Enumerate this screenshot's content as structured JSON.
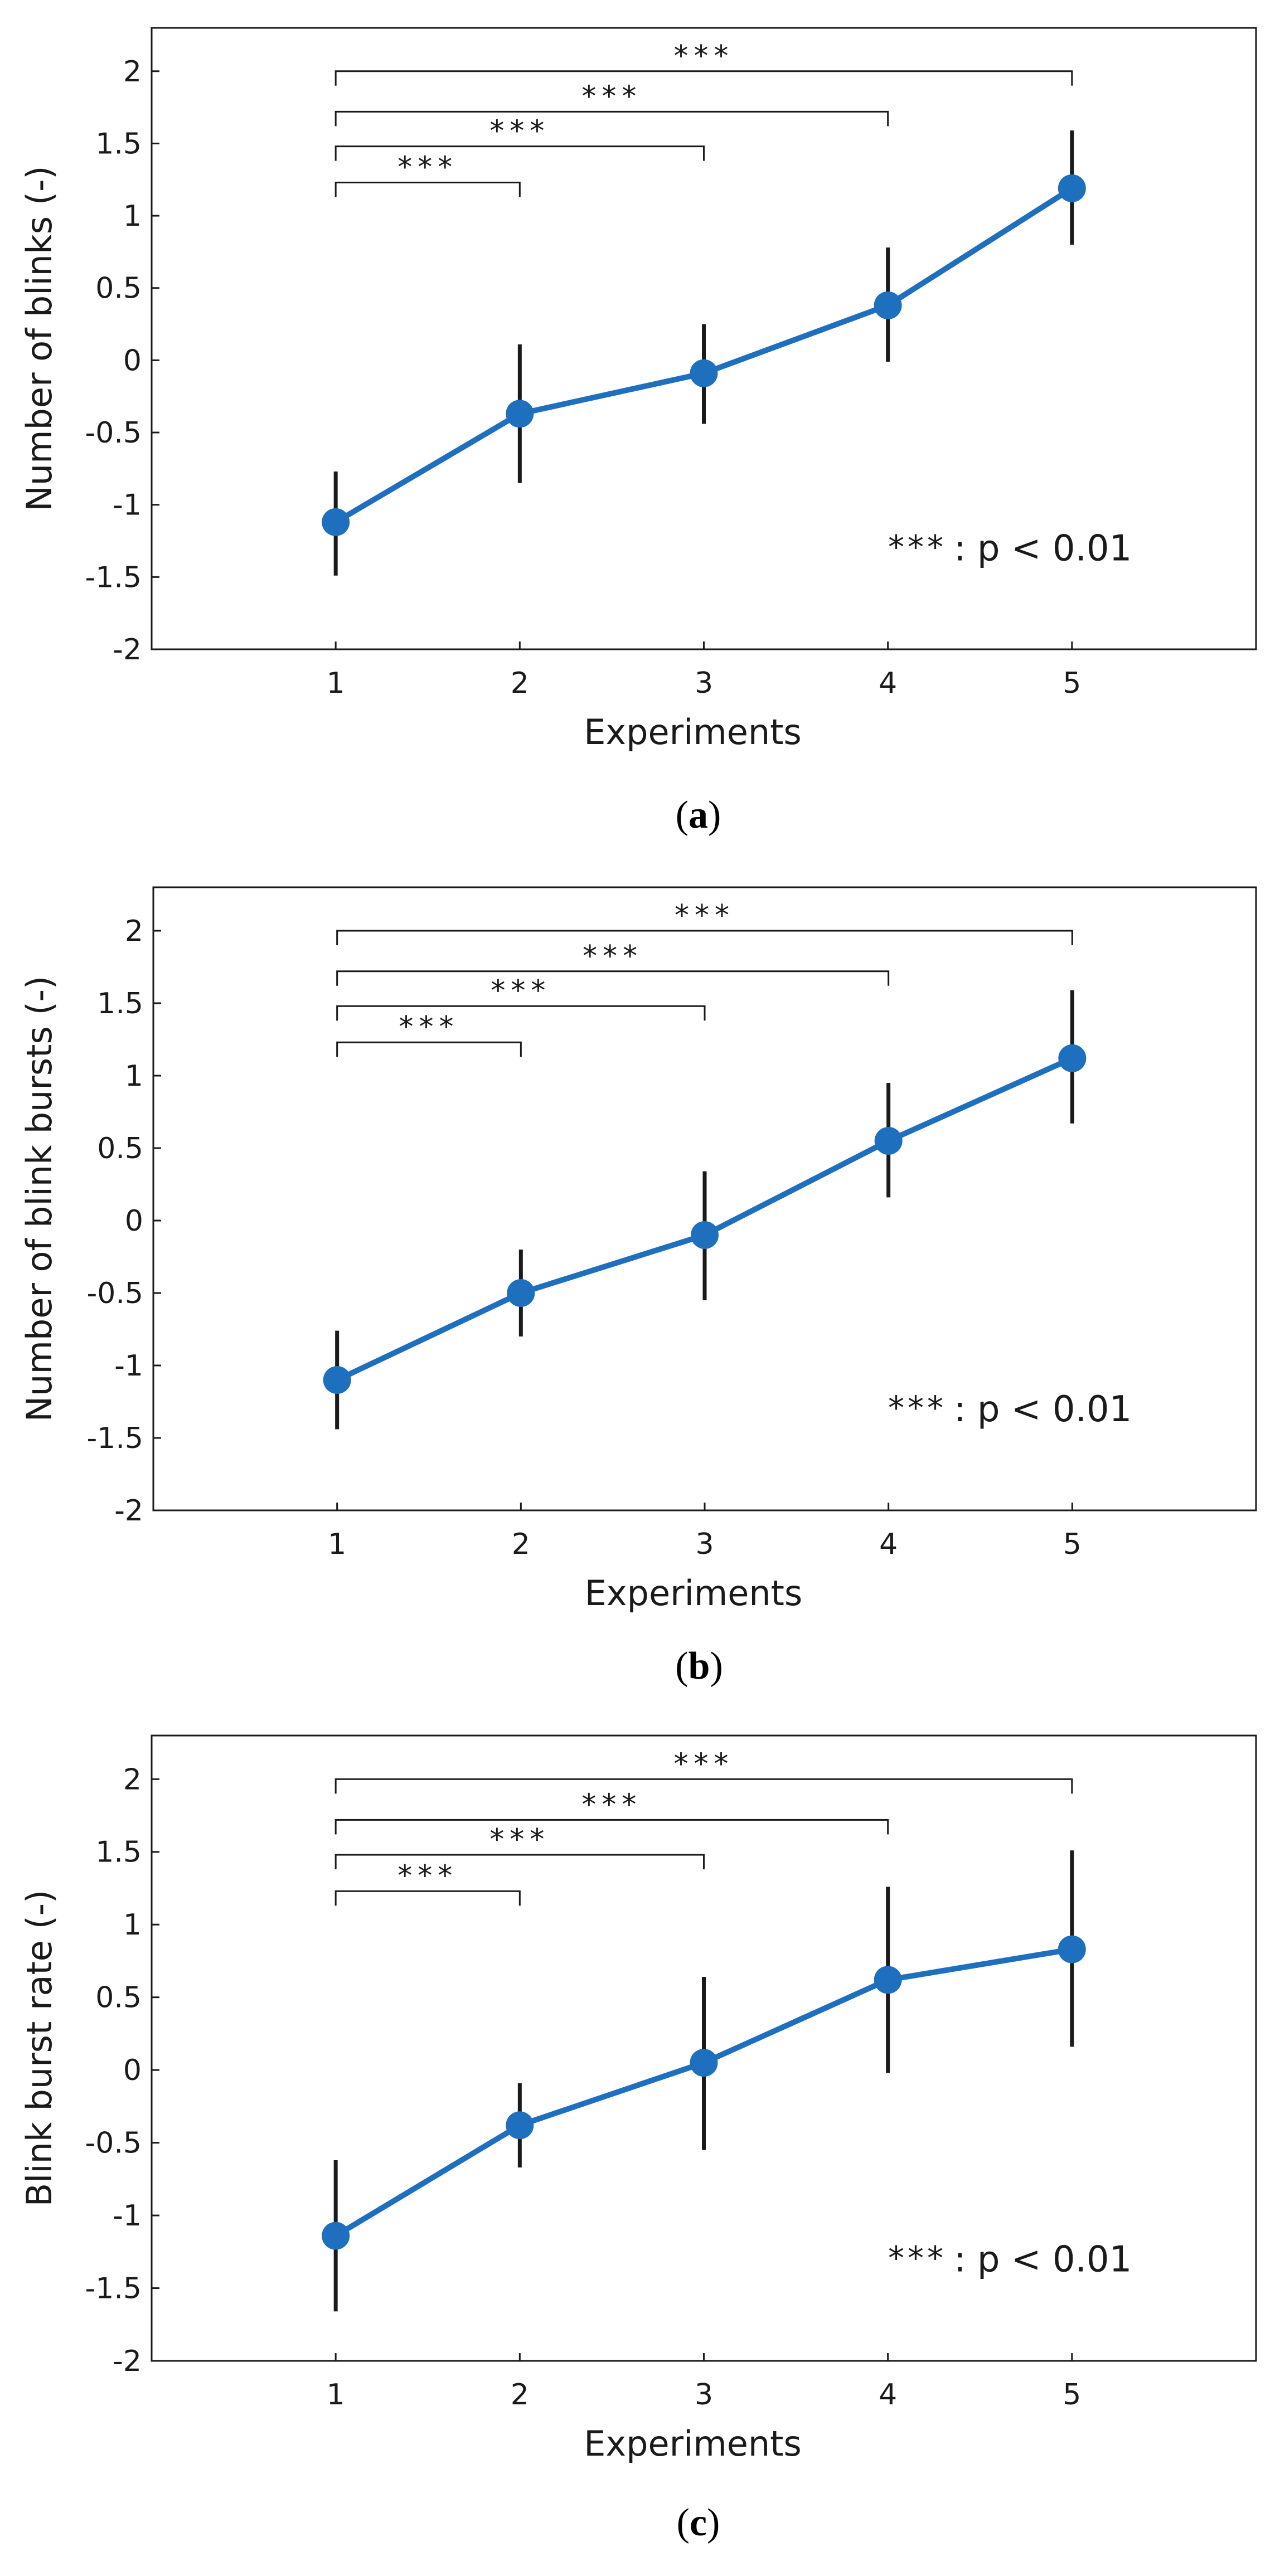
{
  "chart_data": [
    {
      "type": "line",
      "panel": "a",
      "caption_letter": "a",
      "caption_open": "(",
      "caption_close": ")",
      "xlabel": "Experiments",
      "ylabel": "Number of blinks (-)",
      "x": [
        1,
        2,
        3,
        4,
        5
      ],
      "x_ticks": [
        "1",
        "2",
        "3",
        "4",
        "5"
      ],
      "xlim": [
        0,
        6
      ],
      "ylim": [
        -2,
        2.3
      ],
      "y_ticks": [
        "2",
        "1.5",
        "1",
        "0.5",
        "0",
        "-0.5",
        "-1",
        "-1.5",
        "-2"
      ],
      "y_tick_values": [
        2,
        1.5,
        1,
        0.5,
        0,
        -0.5,
        -1,
        -1.5,
        -2
      ],
      "series": [
        {
          "name": "mean",
          "color": "#1f6fbf",
          "values": [
            -1.12,
            -0.37,
            -0.09,
            0.38,
            1.19
          ],
          "err_low": [
            -1.49,
            -0.85,
            -0.44,
            -0.01,
            0.8
          ],
          "err_high": [
            -0.77,
            0.11,
            0.25,
            0.78,
            1.59
          ]
        }
      ],
      "significance": [
        {
          "from": 1,
          "to": 5,
          "level": 2.0,
          "label": "***"
        },
        {
          "from": 1,
          "to": 4,
          "level": 1.72,
          "label": "***"
        },
        {
          "from": 1,
          "to": 3,
          "level": 1.48,
          "label": "***"
        },
        {
          "from": 1,
          "to": 2,
          "level": 1.23,
          "label": "***"
        }
      ],
      "legend": {
        "stars": "***",
        "text": ": p < 0.01",
        "placement": "bottom-right"
      }
    },
    {
      "type": "line",
      "panel": "b",
      "caption_letter": "b",
      "caption_open": "(",
      "caption_close": ")",
      "xlabel": "Experiments",
      "ylabel": "Number of blink bursts (-)",
      "x": [
        1,
        2,
        3,
        4,
        5
      ],
      "x_ticks": [
        "1",
        "2",
        "3",
        "4",
        "5"
      ],
      "xlim": [
        0,
        6
      ],
      "ylim": [
        -2,
        2.3
      ],
      "y_ticks": [
        "2",
        "1.5",
        "1",
        "0.5",
        "0",
        "-0.5",
        "-1",
        "-1.5",
        "-2"
      ],
      "y_tick_values": [
        2,
        1.5,
        1,
        0.5,
        0,
        -0.5,
        -1,
        -1.5,
        -2
      ],
      "series": [
        {
          "name": "mean",
          "color": "#1f6fbf",
          "values": [
            -1.1,
            -0.5,
            -0.1,
            0.55,
            1.12
          ],
          "err_low": [
            -1.44,
            -0.8,
            -0.55,
            0.16,
            0.67
          ],
          "err_high": [
            -0.76,
            -0.2,
            0.34,
            0.95,
            1.59
          ]
        }
      ],
      "significance": [
        {
          "from": 1,
          "to": 5,
          "level": 2.0,
          "label": "***"
        },
        {
          "from": 1,
          "to": 4,
          "level": 1.72,
          "label": "***"
        },
        {
          "from": 1,
          "to": 3,
          "level": 1.48,
          "label": "***"
        },
        {
          "from": 1,
          "to": 2,
          "level": 1.23,
          "label": "***"
        }
      ],
      "legend": {
        "stars": "***",
        "text": ": p < 0.01",
        "placement": "bottom-right"
      }
    },
    {
      "type": "line",
      "panel": "c",
      "caption_letter": "c",
      "caption_open": "(",
      "caption_close": ")",
      "xlabel": "Experiments",
      "ylabel": "Blink burst rate (-)",
      "x": [
        1,
        2,
        3,
        4,
        5
      ],
      "x_ticks": [
        "1",
        "2",
        "3",
        "4",
        "5"
      ],
      "xlim": [
        0,
        6
      ],
      "ylim": [
        -2,
        2.3
      ],
      "y_ticks": [
        "2",
        "1.5",
        "1",
        "0.5",
        "0",
        "-0.5",
        "-1",
        "-1.5",
        "-2"
      ],
      "y_tick_values": [
        2,
        1.5,
        1,
        0.5,
        0,
        -0.5,
        -1,
        -1.5,
        -2
      ],
      "series": [
        {
          "name": "mean",
          "color": "#1f6fbf",
          "values": [
            -1.14,
            -0.38,
            0.05,
            0.62,
            0.83
          ],
          "err_low": [
            -1.66,
            -0.67,
            -0.55,
            -0.02,
            0.16
          ],
          "err_high": [
            -0.62,
            -0.09,
            0.64,
            1.26,
            1.51
          ]
        }
      ],
      "significance": [
        {
          "from": 1,
          "to": 5,
          "level": 2.0,
          "label": "***"
        },
        {
          "from": 1,
          "to": 4,
          "level": 1.72,
          "label": "***"
        },
        {
          "from": 1,
          "to": 3,
          "level": 1.48,
          "label": "***"
        },
        {
          "from": 1,
          "to": 2,
          "level": 1.23,
          "label": "***"
        }
      ],
      "legend": {
        "stars": "***",
        "text": ": p < 0.01",
        "placement": "bottom-right"
      }
    }
  ]
}
